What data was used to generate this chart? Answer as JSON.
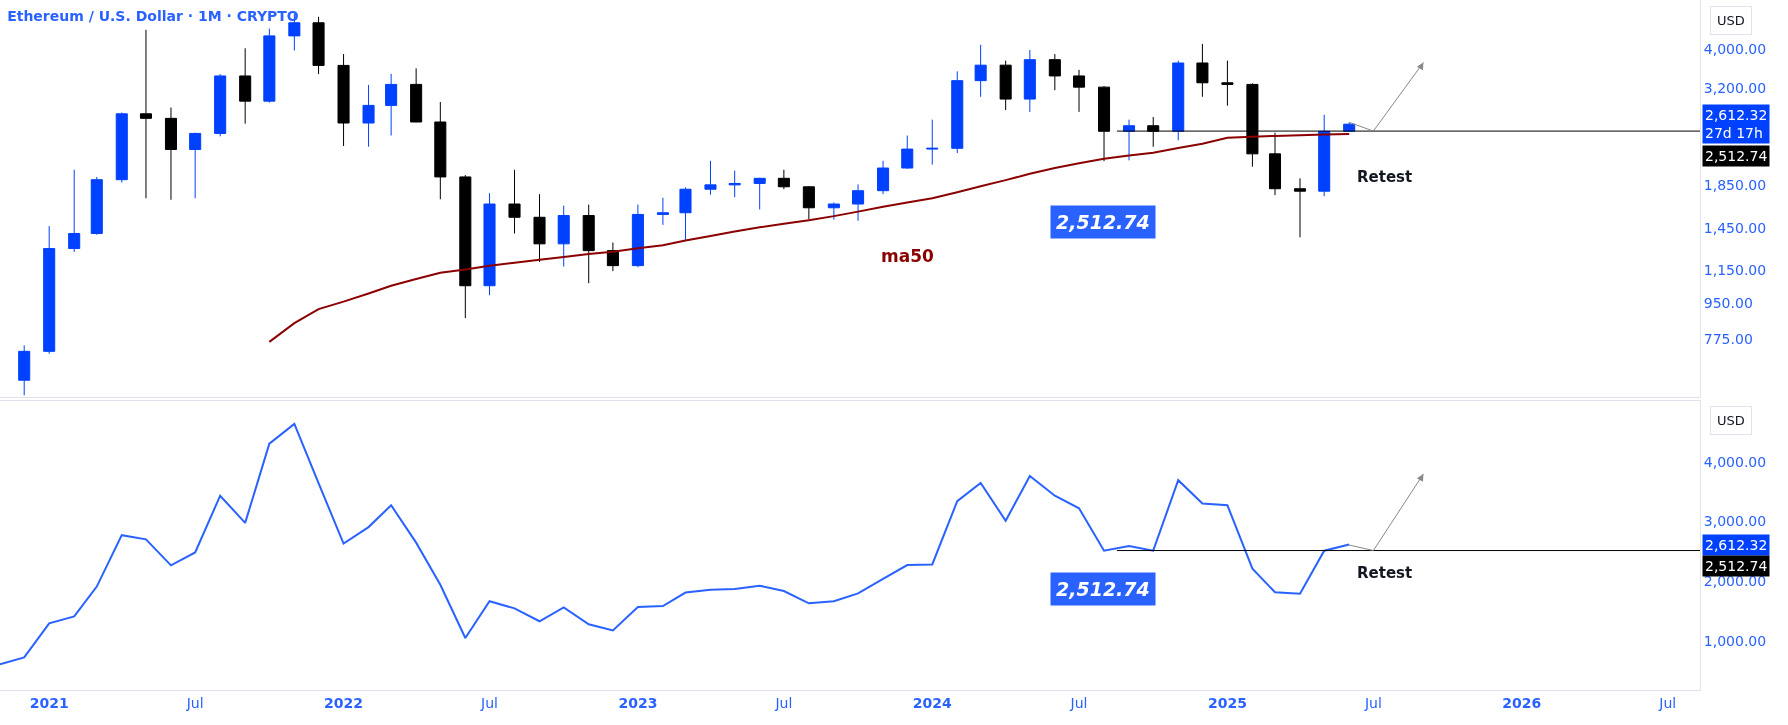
{
  "chart_data": [
    {
      "type": "candlestick",
      "title": "Ethereum / U.S. Dollar · 1M · CRYPTO",
      "ylabel": "USD",
      "log": true,
      "tick_labels": "y",
      "x": [
        "2020-12",
        "2021-01",
        "2021-02",
        "2021-03",
        "2021-04",
        "2021-05",
        "2021-06",
        "2021-07",
        "2021-08",
        "2021-09",
        "2021-10",
        "2021-11",
        "2021-12",
        "2022-01",
        "2022-02",
        "2022-03",
        "2022-04",
        "2022-05",
        "2022-06",
        "2022-07",
        "2022-08",
        "2022-09",
        "2022-10",
        "2022-11",
        "2022-12",
        "2023-01",
        "2023-02",
        "2023-03",
        "2023-04",
        "2023-05",
        "2023-06",
        "2023-07",
        "2023-08",
        "2023-09",
        "2023-10",
        "2023-11",
        "2023-12",
        "2024-01",
        "2024-02",
        "2024-03",
        "2024-04",
        "2024-05",
        "2024-06",
        "2024-07",
        "2024-08",
        "2024-09",
        "2024-10",
        "2024-11",
        "2024-12",
        "2025-01",
        "2025-02",
        "2025-03",
        "2025-04",
        "2025-05",
        "2025-06"
      ],
      "ohlc": [
        [
          616,
          750,
          566,
          725
        ],
        [
          725,
          1470,
          715,
          1295
        ],
        [
          1295,
          2020,
          1270,
          1410
        ],
        [
          1410,
          1940,
          1400,
          1910
        ],
        [
          1910,
          2790,
          1880,
          2770
        ],
        [
          2770,
          4450,
          1720,
          2700
        ],
        [
          2700,
          2870,
          1705,
          2265
        ],
        [
          2265,
          2490,
          1720,
          2480
        ],
        [
          2480,
          3465,
          2440,
          3430
        ],
        [
          3430,
          4010,
          2620,
          2975
        ],
        [
          2975,
          4480,
          2950,
          4300
        ],
        [
          4300,
          4870,
          3960,
          4630
        ],
        [
          4630,
          4790,
          3465,
          3640
        ],
        [
          3640,
          3880,
          2310,
          2630
        ],
        [
          2630,
          3260,
          2300,
          2905
        ],
        [
          2905,
          3470,
          2450,
          3270
        ],
        [
          3270,
          3580,
          2640,
          2645
        ],
        [
          2645,
          2960,
          1710,
          1940
        ],
        [
          1940,
          1960,
          875,
          1050
        ],
        [
          1050,
          1770,
          995,
          1665
        ],
        [
          1665,
          2020,
          1410,
          1545
        ],
        [
          1545,
          1760,
          1200,
          1330
        ],
        [
          1330,
          1650,
          1170,
          1560
        ],
        [
          1560,
          1660,
          1065,
          1280
        ],
        [
          1280,
          1340,
          1140,
          1176
        ],
        [
          1176,
          1660,
          1165,
          1570
        ],
        [
          1570,
          1725,
          1480,
          1585
        ],
        [
          1585,
          1830,
          1360,
          1810
        ],
        [
          1810,
          2125,
          1755,
          1855
        ],
        [
          1855,
          2010,
          1730,
          1870
        ],
        [
          1870,
          1930,
          1615,
          1925
        ],
        [
          1925,
          2020,
          1810,
          1835
        ],
        [
          1835,
          1840,
          1530,
          1630
        ],
        [
          1630,
          1680,
          1525,
          1665
        ],
        [
          1665,
          1860,
          1515,
          1795
        ],
        [
          1795,
          2125,
          1760,
          2040
        ],
        [
          2040,
          2450,
          2030,
          2270
        ],
        [
          2270,
          2680,
          2080,
          2280
        ],
        [
          2280,
          3520,
          2220,
          3340
        ],
        [
          3340,
          4090,
          3050,
          3645
        ],
        [
          3645,
          3740,
          2830,
          3010
        ],
        [
          3010,
          3970,
          2800,
          3760
        ],
        [
          3760,
          3880,
          3165,
          3430
        ],
        [
          3430,
          3550,
          2800,
          3220
        ],
        [
          3220,
          3240,
          2120,
          2510
        ],
        [
          2510,
          2680,
          2130,
          2590
        ],
        [
          2590,
          2720,
          2300,
          2510
        ],
        [
          2510,
          3740,
          2385,
          3690
        ],
        [
          3690,
          4110,
          3050,
          3300
        ],
        [
          3300,
          3740,
          2900,
          3270
        ],
        [
          3270,
          3290,
          2055,
          2210
        ],
        [
          2210,
          2490,
          1750,
          1815
        ],
        [
          1815,
          1925,
          1380,
          1790
        ],
        [
          1790,
          2755,
          1740,
          2510
        ],
        [
          2510,
          2640,
          2505,
          2612.32
        ]
      ],
      "colors": [
        "#0041ff",
        "#0041ff",
        "#0041ff",
        "#0041ff",
        "#0041ff",
        "#000000",
        "#000000",
        "#0041ff",
        "#0041ff",
        "#000000",
        "#0041ff",
        "#0041ff",
        "#000000",
        "#000000",
        "#0041ff",
        "#0041ff",
        "#000000",
        "#000000",
        "#000000",
        "#0041ff",
        "#000000",
        "#000000",
        "#0041ff",
        "#000000",
        "#000000",
        "#0041ff",
        "#0041ff",
        "#0041ff",
        "#0041ff",
        "#0041ff",
        "#0041ff",
        "#000000",
        "#000000",
        "#0041ff",
        "#0041ff",
        "#0041ff",
        "#0041ff",
        "#0041ff",
        "#0041ff",
        "#0041ff",
        "#000000",
        "#0041ff",
        "#000000",
        "#000000",
        "#000000",
        "#0041ff",
        "#000000",
        "#0041ff",
        "#000000",
        "#000000",
        "#000000",
        "#000000",
        "#000000",
        "#0041ff",
        "#0041ff"
      ],
      "series": [
        {
          "type": "line",
          "name": "ma50",
          "color": "#8b0000",
          "x": [
            "2021-10",
            "2021-11",
            "2021-12",
            "2022-01",
            "2022-02",
            "2022-03",
            "2022-04",
            "2022-05",
            "2022-06",
            "2022-07",
            "2022-08",
            "2022-09",
            "2022-10",
            "2022-11",
            "2022-12",
            "2023-01",
            "2023-02",
            "2023-03",
            "2023-04",
            "2023-05",
            "2023-06",
            "2023-07",
            "2023-08",
            "2023-09",
            "2023-10",
            "2023-11",
            "2023-12",
            "2024-01",
            "2024-02",
            "2024-03",
            "2024-04",
            "2024-05",
            "2024-06",
            "2024-07",
            "2024-08",
            "2024-09",
            "2024-10",
            "2024-11",
            "2024-12",
            "2025-01",
            "2025-02",
            "2025-03",
            "2025-04",
            "2025-05",
            "2025-06"
          ],
          "values": [
            765,
            850,
            920,
            960,
            1005,
            1050,
            1090,
            1130,
            1150,
            1175,
            1195,
            1215,
            1235,
            1255,
            1272,
            1297,
            1320,
            1355,
            1390,
            1425,
            1460,
            1490,
            1520,
            1555,
            1595,
            1640,
            1680,
            1720,
            1780,
            1840,
            1905,
            1975,
            2040,
            2095,
            2150,
            2190,
            2225,
            2285,
            2340,
            2420,
            2435,
            2445,
            2455,
            2465,
            2470
          ]
        },
        {
          "type": "line",
          "color": "#000000",
          "x": [
            "2024-08-17",
            "2026-08-10"
          ],
          "values": [
            2512.74,
            2512.74
          ]
        },
        {
          "type": "line",
          "color": "#888888",
          "x": [
            "2025-06",
            "2025-07",
            "2025-09"
          ],
          "values": [
            2640,
            2512.74,
            3700
          ]
        }
      ],
      "xlim": [
        "2020-11-01",
        "2026-08-10"
      ],
      "ylim": [
        560,
        5265
      ],
      "yticks": [
        {
          "value": 775,
          "label": "775.00"
        },
        {
          "value": 950,
          "label": "950.00"
        },
        {
          "value": 1150,
          "label": "1,150.00"
        },
        {
          "value": 1450,
          "label": "1,450.00"
        },
        {
          "value": 1850,
          "label": "1,850.00"
        },
        {
          "value": 3200,
          "label": "3,200.00"
        },
        {
          "value": 4000,
          "label": "4,000.00"
        }
      ],
      "annotations": [
        "2,512.74",
        "Retest",
        "2,612.32\n27d 17h",
        "2,512.74"
      ]
    },
    {
      "type": "line",
      "ylabel": "USD",
      "series": [
        {
          "color": "#2962ff",
          "x": [
            "2020-11",
            "2020-12",
            "2021-01",
            "2021-02",
            "2021-03",
            "2021-04",
            "2021-05",
            "2021-06",
            "2021-07",
            "2021-08",
            "2021-09",
            "2021-10",
            "2021-11",
            "2021-12",
            "2022-01",
            "2022-02",
            "2022-03",
            "2022-04",
            "2022-05",
            "2022-06",
            "2022-07",
            "2022-08",
            "2022-09",
            "2022-10",
            "2022-11",
            "2022-12",
            "2023-01",
            "2023-02",
            "2023-03",
            "2023-04",
            "2023-05",
            "2023-06",
            "2023-07",
            "2023-08",
            "2023-09",
            "2023-10",
            "2023-11",
            "2023-12",
            "2024-01",
            "2024-02",
            "2024-03",
            "2024-04",
            "2024-05",
            "2024-06",
            "2024-07",
            "2024-08",
            "2024-09",
            "2024-10",
            "2024-11",
            "2024-12",
            "2025-01",
            "2025-02",
            "2025-03",
            "2025-04",
            "2025-05",
            "2025-06"
          ],
          "values": [
            612,
            725,
            1295,
            1410,
            1910,
            2770,
            2700,
            2265,
            2480,
            3430,
            2975,
            4300,
            4630,
            3640,
            2630,
            2905,
            3270,
            2645,
            1940,
            1050,
            1665,
            1545,
            1330,
            1560,
            1280,
            1176,
            1570,
            1585,
            1810,
            1855,
            1870,
            1925,
            1835,
            1630,
            1665,
            1795,
            2040,
            2270,
            2280,
            3340,
            3645,
            3010,
            3760,
            3430,
            3220,
            2510,
            2590,
            2510,
            3690,
            3300,
            3270,
            2210,
            1815,
            1790,
            2510,
            2612.32
          ]
        },
        {
          "color": "#000000",
          "x": [
            "2024-08-17",
            "2026-08-10"
          ],
          "values": [
            2512.74,
            2512.74
          ]
        },
        {
          "color": "#888888",
          "x": [
            "2025-06",
            "2025-07",
            "2025-09"
          ],
          "values": [
            2605,
            2512.74,
            3795
          ]
        }
      ],
      "xlim": [
        "2020-11-01",
        "2026-08-10"
      ],
      "ylim": [
        180,
        5010
      ],
      "xticks": [
        {
          "value": "2021-01",
          "label": "2021"
        },
        {
          "value": "2021-07",
          "label": "Jul"
        },
        {
          "value": "2022-01",
          "label": "2022"
        },
        {
          "value": "2022-07",
          "label": "Jul"
        },
        {
          "value": "2023-01",
          "label": "2023"
        },
        {
          "value": "2023-07",
          "label": "Jul"
        },
        {
          "value": "2024-01",
          "label": "2024"
        },
        {
          "value": "2024-07",
          "label": "Jul"
        },
        {
          "value": "2025-01",
          "label": "2025"
        },
        {
          "value": "2025-07",
          "label": "Jul"
        },
        {
          "value": "2026-01",
          "label": "2026"
        },
        {
          "value": "2026-07",
          "label": "Jul"
        }
      ],
      "yticks": [
        {
          "value": 1000,
          "label": "1,000.00"
        },
        {
          "value": 2000,
          "label": "2,000.00"
        },
        {
          "value": 3000,
          "label": "3,000.00"
        },
        {
          "value": 4000,
          "label": "4,000.00"
        }
      ],
      "annotations": [
        "2,512.74",
        "Retest",
        "2,612.32",
        "2,512.74"
      ]
    }
  ]
}
